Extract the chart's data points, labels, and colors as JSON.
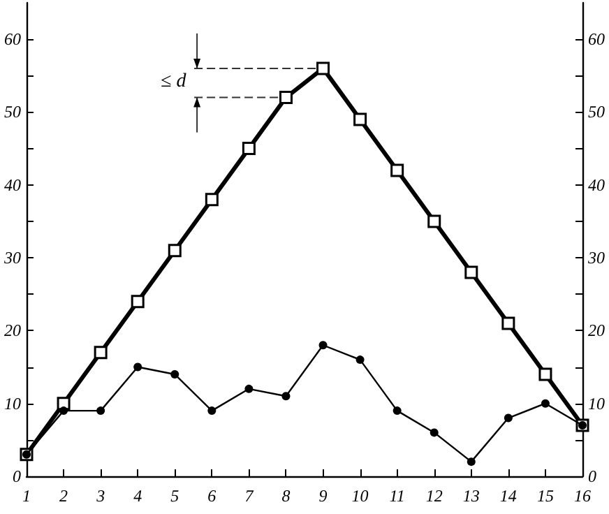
{
  "chart_data": {
    "type": "line",
    "x": [
      1,
      2,
      3,
      4,
      5,
      6,
      7,
      8,
      9,
      10,
      11,
      12,
      13,
      14,
      15,
      16
    ],
    "series": [
      {
        "color": "#000000",
        "marker": "square",
        "values": [
          3,
          10,
          17,
          24,
          31,
          38,
          45,
          52,
          56,
          49,
          42,
          35,
          28,
          21,
          14,
          7
        ]
      },
      {
        "color": "#000000",
        "marker": "circle",
        "values": [
          3,
          9,
          9,
          15,
          14,
          9,
          12,
          11,
          18,
          16,
          9,
          6,
          2,
          8,
          10,
          7
        ]
      }
    ],
    "xlim": [
      1,
      16
    ],
    "xticks": [
      1,
      2,
      3,
      4,
      5,
      6,
      7,
      8,
      9,
      10,
      11,
      12,
      13,
      14,
      15,
      16
    ],
    "ylim": [
      0,
      65
    ],
    "yticks": [
      0,
      {
        "value": 5,
        "label": null
      },
      10,
      {
        "value": 15,
        "label": null
      },
      20,
      {
        "value": 25,
        "label": null
      },
      30,
      {
        "value": 35,
        "label": null
      },
      40,
      {
        "value": 45,
        "label": null
      },
      50,
      {
        "value": 55,
        "label": null
      },
      60
    ],
    "y2lim": [
      0,
      65
    ],
    "y2ticks": [
      0,
      {
        "value": 5,
        "label": null
      },
      10,
      {
        "value": 15,
        "label": null
      },
      20,
      {
        "value": 25,
        "label": null
      },
      30,
      {
        "value": 35,
        "label": null
      },
      40,
      {
        "value": 45,
        "label": null
      },
      50,
      {
        "value": 55,
        "label": null
      },
      60
    ],
    "annotations": [
      {
        "text": "≤ d",
        "x": 9,
        "y": 56
      }
    ],
    "grid": false
  }
}
